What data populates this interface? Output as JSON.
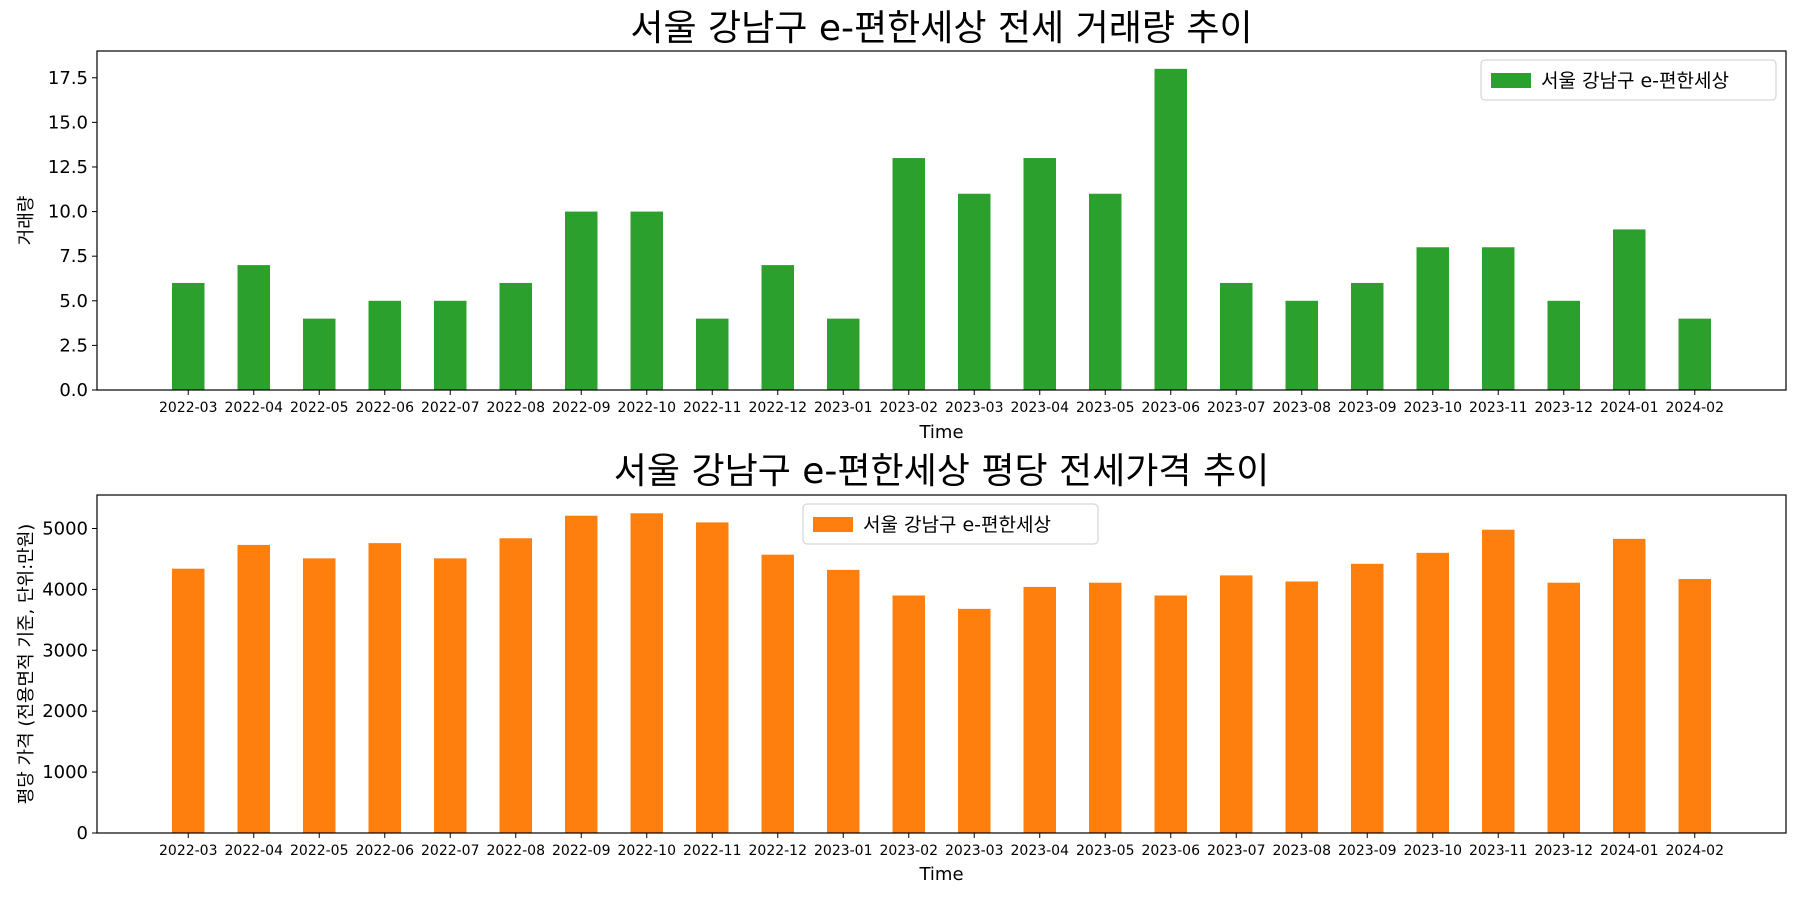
{
  "chart_data": [
    {
      "type": "bar",
      "title": "서울 강남구 e-편한세상 전세 거래량 추이",
      "xlabel": "Time",
      "ylabel": "거래량",
      "ylim": [
        0,
        19
      ],
      "yticks": [
        0.0,
        2.5,
        5.0,
        7.5,
        10.0,
        12.5,
        15.0,
        17.5
      ],
      "ytick_labels": [
        "0.0",
        "2.5",
        "5.0",
        "7.5",
        "10.0",
        "12.5",
        "15.0",
        "17.5"
      ],
      "grid": false,
      "legend_position": "top-right",
      "color": "#2ca02c",
      "categories": [
        "2022-03",
        "2022-04",
        "2022-05",
        "2022-06",
        "2022-07",
        "2022-08",
        "2022-09",
        "2022-10",
        "2022-11",
        "2022-12",
        "2023-01",
        "2023-02",
        "2023-03",
        "2023-04",
        "2023-05",
        "2023-06",
        "2023-07",
        "2023-08",
        "2023-09",
        "2023-10",
        "2023-11",
        "2023-12",
        "2024-01",
        "2024-02"
      ],
      "series": [
        {
          "name": "서울 강남구 e-편한세상",
          "values": [
            6,
            7,
            4,
            5,
            5,
            6,
            10,
            10,
            4,
            7,
            4,
            13,
            11,
            13,
            11,
            18,
            6,
            5,
            6,
            8,
            8,
            5,
            9,
            4
          ]
        }
      ]
    },
    {
      "type": "bar",
      "title": "서울 강남구 e-편한세상 평당 전세가격 추이",
      "xlabel": "Time",
      "ylabel": "평당 가격 (전용면적 기준, 단위:만원)",
      "ylim": [
        0,
        5550
      ],
      "yticks": [
        0,
        1000,
        2000,
        3000,
        4000,
        5000
      ],
      "ytick_labels": [
        "0",
        "1000",
        "2000",
        "3000",
        "4000",
        "5000"
      ],
      "grid": false,
      "legend_position": "upper-center",
      "color": "#ff7f0e",
      "categories": [
        "2022-03",
        "2022-04",
        "2022-05",
        "2022-06",
        "2022-07",
        "2022-08",
        "2022-09",
        "2022-10",
        "2022-11",
        "2022-12",
        "2023-01",
        "2023-02",
        "2023-03",
        "2023-04",
        "2023-05",
        "2023-06",
        "2023-07",
        "2023-08",
        "2023-09",
        "2023-10",
        "2023-11",
        "2023-12",
        "2024-01",
        "2024-02"
      ],
      "series": [
        {
          "name": "서울 강남구 e-편한세상",
          "values": [
            4340,
            4730,
            4510,
            4760,
            4510,
            4840,
            5210,
            5250,
            5100,
            4570,
            4320,
            3900,
            3680,
            4040,
            4110,
            3900,
            4230,
            4130,
            4420,
            4600,
            4980,
            4110,
            4830,
            4170
          ]
        }
      ]
    }
  ]
}
